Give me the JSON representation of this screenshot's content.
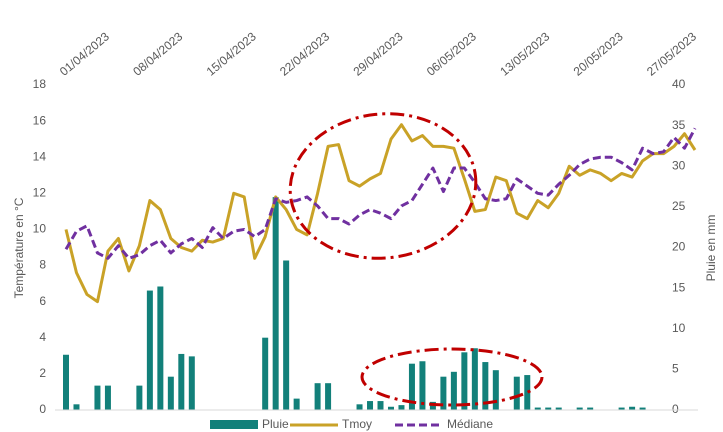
{
  "chart_data": {
    "type": "combo",
    "y_label": "Température en °C",
    "y2_label": "Pluie en mm",
    "categories": [
      "01/04/2023",
      null,
      null,
      null,
      null,
      null,
      null,
      "08/04/2023",
      null,
      null,
      null,
      null,
      null,
      null,
      "15/04/2023",
      null,
      null,
      null,
      null,
      null,
      null,
      "22/04/2023",
      null,
      null,
      null,
      null,
      null,
      null,
      "29/04/2023",
      null,
      null,
      null,
      null,
      null,
      null,
      "06/05/2023",
      null,
      null,
      null,
      null,
      null,
      null,
      "13/05/2023",
      null,
      null,
      null,
      null,
      null,
      null,
      "20/05/2023",
      null,
      null,
      null,
      null,
      null,
      null,
      "27/05/2023",
      null,
      null,
      null,
      null
    ],
    "series": [
      {
        "name": "Pluie",
        "type": "bar",
        "axis": "y2",
        "color": "#12807a",
        "values": [
          6.8,
          0.7,
          0,
          3.0,
          3.0,
          0,
          0,
          3.0,
          14.7,
          15.2,
          4.1,
          6.9,
          6.6,
          0,
          0,
          0,
          0,
          0,
          0,
          8.9,
          26.2,
          18.4,
          1.4,
          0,
          3.3,
          3.3,
          0,
          0,
          0.7,
          1.1,
          1.1,
          0.4,
          0.6,
          5.7,
          6.0,
          1.0,
          4.1,
          4.7,
          7.1,
          7.6,
          5.9,
          4.9,
          0,
          4.1,
          4.3,
          0.3,
          0.3,
          0.3,
          0,
          0.3,
          0.3,
          0,
          0,
          0.3,
          0.4,
          0.3,
          0,
          0,
          0,
          0,
          0
        ]
      },
      {
        "name": "Tmoy",
        "type": "line",
        "color": "#c9a227",
        "values": [
          10.0,
          7.6,
          6.4,
          6.0,
          8.8,
          9.5,
          7.7,
          9.1,
          11.6,
          11.1,
          9.5,
          9.0,
          8.8,
          9.4,
          9.3,
          9.5,
          12.0,
          11.8,
          8.4,
          9.6,
          11.8,
          11.1,
          10.0,
          9.7,
          12.0,
          14.6,
          14.7,
          12.7,
          12.4,
          12.8,
          13.1,
          15.0,
          15.8,
          14.9,
          15.2,
          14.6,
          14.6,
          14.5,
          12.8,
          11.0,
          11.1,
          12.9,
          12.7,
          10.9,
          10.6,
          11.6,
          11.2,
          12.0,
          13.5,
          13.0,
          13.3,
          13.1,
          12.7,
          13.1,
          12.9,
          13.8,
          14.2,
          14.2,
          14.6,
          15.3,
          14.4
        ]
      },
      {
        "name": "Médiane",
        "type": "line",
        "dashed": true,
        "color": "#7030a0",
        "values": [
          8.9,
          9.9,
          10.2,
          8.7,
          8.4,
          9.1,
          8.4,
          8.6,
          9.1,
          9.4,
          8.7,
          9.2,
          9.5,
          9.0,
          10.1,
          9.5,
          9.9,
          10.0,
          9.6,
          10.0,
          11.7,
          11.5,
          11.6,
          11.8,
          11.3,
          10.6,
          10.6,
          10.3,
          10.8,
          11.1,
          10.9,
          10.6,
          11.3,
          11.6,
          12.5,
          13.4,
          12.1,
          13.4,
          13.4,
          12.6,
          11.7,
          11.6,
          11.7,
          12.8,
          12.4,
          12.0,
          11.9,
          12.5,
          13.0,
          13.6,
          13.9,
          14.0,
          14.0,
          13.7,
          13.3,
          14.5,
          14.2,
          14.3,
          15.1,
          14.5,
          15.6
        ]
      }
    ],
    "ylim": [
      0,
      18
    ],
    "yticks": [
      0,
      2,
      4,
      6,
      8,
      10,
      12,
      14,
      16,
      18
    ],
    "y2lim": [
      0,
      40
    ],
    "y2ticks": [
      0,
      5,
      10,
      15,
      20,
      25,
      30,
      35,
      40
    ],
    "grid": false,
    "legend": "bottom"
  }
}
